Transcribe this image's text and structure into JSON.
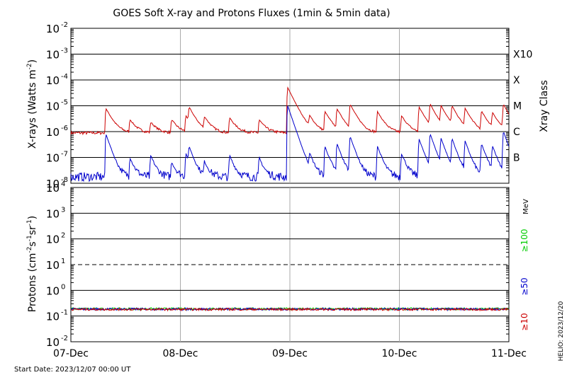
{
  "chart_data": [
    {
      "type": "line",
      "panel": "xrays",
      "title": "GOES Soft X-ray and Protons Fluxes   (1min & 5min data)",
      "ylabel_html": "X-rays (Watts m<tspan baseline-shift='super' font-size='9'>-2</tspan>)",
      "ylabel_parts": [
        "X-rays (Watts m",
        "-2",
        ")"
      ],
      "yscale": "log",
      "ylim_exp": [
        -8,
        -2
      ],
      "ytick_labels": [
        {
          "base": "10",
          "exp": "-8"
        },
        {
          "base": "10",
          "exp": "-7"
        },
        {
          "base": "10",
          "exp": "-6"
        },
        {
          "base": "10",
          "exp": "-5"
        },
        {
          "base": "10",
          "exp": "-4"
        },
        {
          "base": "10",
          "exp": "-3"
        },
        {
          "base": "10",
          "exp": "-2"
        }
      ],
      "xray_class_title": "Xray Class",
      "xray_classes": [
        {
          "label": "B",
          "exp": -7
        },
        {
          "label": "C",
          "exp": -6
        },
        {
          "label": "M",
          "exp": -5
        },
        {
          "label": "X",
          "exp": -4
        },
        {
          "label": "X10",
          "exp": -3
        }
      ],
      "series": [
        {
          "band": "long",
          "color": "#cc0000"
        },
        {
          "band": "short",
          "color": "#0000cc"
        }
      ],
      "baseline_exp": {
        "long": -6.05,
        "short": -7.75
      },
      "flares": [
        {
          "day": 0.32,
          "long": -5.15,
          "short": -6.1
        },
        {
          "day": 0.54,
          "long": -5.7,
          "short": -7.1
        },
        {
          "day": 0.73,
          "long": -5.85,
          "short": -7.0
        },
        {
          "day": 0.92,
          "long": -5.7,
          "short": -7.3
        },
        {
          "day": 1.05,
          "long": -5.5,
          "short": -6.9
        },
        {
          "day": 1.08,
          "long": -5.2,
          "short": -6.7
        },
        {
          "day": 1.22,
          "long": -5.6,
          "short": -7.3
        },
        {
          "day": 1.45,
          "long": -5.6,
          "short": -7.0
        },
        {
          "day": 1.72,
          "long": -5.7,
          "short": -7.1
        },
        {
          "day": 1.98,
          "long": -4.3,
          "short": -5.0
        },
        {
          "day": 2.18,
          "long": -5.6,
          "short": -7.0
        },
        {
          "day": 2.32,
          "long": -5.3,
          "short": -6.6
        },
        {
          "day": 2.43,
          "long": -5.2,
          "short": -6.5
        },
        {
          "day": 2.55,
          "long": -5.0,
          "short": -6.2
        },
        {
          "day": 2.8,
          "long": -5.3,
          "short": -6.6
        },
        {
          "day": 3.02,
          "long": -5.5,
          "short": -6.9
        },
        {
          "day": 3.18,
          "long": -5.1,
          "short": -6.3
        },
        {
          "day": 3.28,
          "long": -5.0,
          "short": -6.1
        },
        {
          "day": 3.38,
          "long": -5.1,
          "short": -6.3
        },
        {
          "day": 3.48,
          "long": -5.1,
          "short": -6.3
        },
        {
          "day": 3.6,
          "long": -5.2,
          "short": -6.4
        },
        {
          "day": 3.75,
          "long": -5.3,
          "short": -6.5
        },
        {
          "day": 3.85,
          "long": -5.4,
          "short": -6.6
        },
        {
          "day": 3.95,
          "long": -5.0,
          "short": -6.0
        }
      ]
    },
    {
      "type": "line",
      "panel": "protons",
      "ylabel_parts": [
        "Protons (cm",
        "-2",
        "s",
        "-1",
        "sr",
        "-1",
        ")"
      ],
      "yscale": "log",
      "ylim_exp": [
        -2,
        4
      ],
      "ytick_labels": [
        {
          "base": "10",
          "exp": "-2"
        },
        {
          "base": "10",
          "exp": "-1"
        },
        {
          "base": "10",
          "exp": "0"
        },
        {
          "base": "10",
          "exp": "1"
        },
        {
          "base": "10",
          "exp": "2"
        },
        {
          "base": "10",
          "exp": "3"
        },
        {
          "base": "10",
          "exp": "4"
        }
      ],
      "threshold_exp": 1,
      "energy_unit": "MeV",
      "series": [
        {
          "label": "≥100",
          "color": "#00cc00"
        },
        {
          "label": "≥50",
          "color": "#0000cc"
        },
        {
          "label": "≥10",
          "color": "#cc0000"
        }
      ],
      "baseline_exp": -0.72
    }
  ],
  "x_axis": {
    "day_range": [
      0,
      4
    ],
    "tick_labels": [
      "07-Dec",
      "08-Dec",
      "09-Dec",
      "10-Dec",
      "11-Dec"
    ]
  },
  "footer": {
    "start_date": "Start Date: 2023/12/07 00:00 UT",
    "helio": "HELIO: 2023/12/20"
  }
}
